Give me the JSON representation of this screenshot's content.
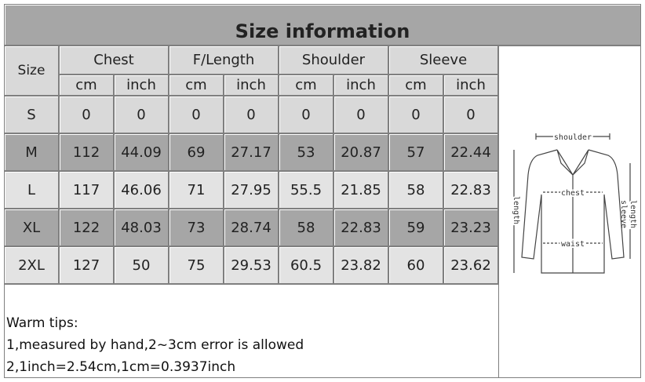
{
  "title": "Size information",
  "table": {
    "header": [
      "Size",
      "Chest",
      "F/Length",
      "Shoulder",
      "Sleeve"
    ],
    "units": [
      "cm",
      "inch",
      "cm",
      "inch",
      "cm",
      "inch",
      "cm",
      "inch"
    ],
    "rows": [
      [
        "S",
        0,
        0,
        0,
        0,
        0,
        0,
        0,
        0
      ],
      [
        "M",
        112,
        44.09,
        69,
        27.17,
        53,
        20.87,
        57,
        22.44
      ],
      [
        "L",
        117,
        46.06,
        71,
        27.95,
        55.5,
        21.85,
        58,
        22.83
      ],
      [
        "XL",
        122,
        48.03,
        73,
        28.74,
        58,
        22.83,
        59,
        23.23
      ],
      [
        "2XL",
        127,
        50,
        75,
        29.53,
        60.5,
        23.82,
        60,
        23.62
      ]
    ]
  },
  "notes": [
    "Warm tips:",
    "1,measured by hand,2~3cm error is allowed",
    "2,1inch=2.54cm,1cm=0.3937inch"
  ],
  "diagram": {
    "shoulder": "shoulder",
    "chest": "chest",
    "waist": "waist",
    "length": "length",
    "sleeve": [
      "sleeve",
      "length"
    ]
  }
}
